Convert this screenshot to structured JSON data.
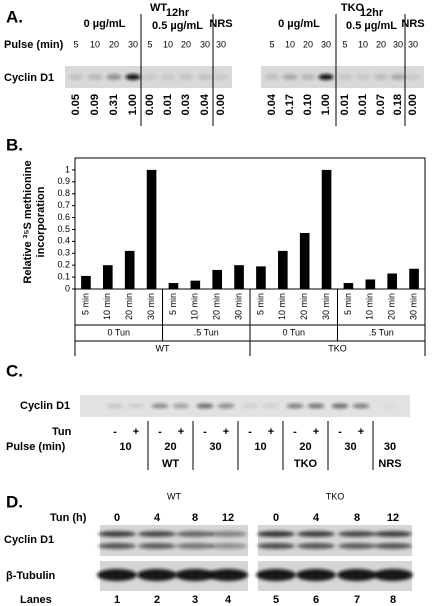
{
  "panel_a": {
    "label": "A.",
    "pulse_label": "Pulse (min)",
    "row_label": "Cyclin D1",
    "samples": [
      {
        "name": "WT",
        "dose_0": "0 µg/mL",
        "time": "12hr",
        "dose_1": "0.5 µg/mL",
        "control": "NRS",
        "pulses": [
          "5",
          "10",
          "20",
          "30",
          "5",
          "10",
          "20",
          "30",
          "30"
        ],
        "values": [
          "0.05",
          "0.09",
          "0.31",
          "1.00",
          "0.00",
          "0.01",
          "0.03",
          "0.04",
          "0.00"
        ]
      },
      {
        "name": "TKO",
        "dose_0": "0 µg/mL",
        "time": "12hr",
        "dose_1": "0.5 µg/mL",
        "control": "NRS",
        "pulses": [
          "5",
          "10",
          "20",
          "30",
          "5",
          "10",
          "20",
          "30",
          "30"
        ],
        "values": [
          "0.04",
          "0.17",
          "0.10",
          "1.00",
          "0.01",
          "0.01",
          "0.07",
          "0.18",
          "0.00"
        ]
      }
    ]
  },
  "panel_b": {
    "label": "B."
  },
  "chart_data": {
    "type": "bar",
    "ylabel": [
      "Relative ³⁵S methionine",
      "incorporation"
    ],
    "categories": [
      "5 min",
      "10 min",
      "20 min",
      "30 min",
      "5 min",
      "10 min",
      "20 min",
      "30 min",
      "5 min",
      "10 min",
      "20 min",
      "30 min",
      "5 min",
      "10 min",
      "20 min",
      "30 min"
    ],
    "values": [
      0.11,
      0.2,
      0.32,
      1.0,
      0.05,
      0.07,
      0.16,
      0.2,
      0.19,
      0.32,
      0.47,
      1.0,
      0.05,
      0.08,
      0.13,
      0.17
    ],
    "color": "#000000",
    "ylim": [
      0,
      1.1
    ],
    "yticks": [
      0,
      0.1,
      0.2,
      0.3,
      0.4,
      0.5,
      0.6,
      0.7,
      0.8,
      0.9,
      1
    ],
    "group_labels": [
      "0 Tun",
      ".5 Tun",
      "0 Tun",
      ".5 Tun"
    ],
    "super_groups": [
      "WT",
      "TKO"
    ],
    "grid": false
  },
  "panel_c": {
    "label": "C.",
    "row_label": "Cyclin D1",
    "tun_label": "Tun",
    "tun": [
      "-",
      "+",
      "-",
      "+",
      "-",
      "+",
      "-",
      "+",
      "-",
      "+",
      "-",
      "+"
    ],
    "pulse_label": "Pulse (min)",
    "pulses": [
      "10",
      "20",
      "30",
      "10",
      "20",
      "30",
      "30"
    ],
    "groups": [
      "WT",
      "TKO",
      "NRS"
    ]
  },
  "panel_d": {
    "label": "D.",
    "groups": [
      "WT",
      "TKO"
    ],
    "tun_label": "Tun (h)",
    "tun": [
      "0",
      "4",
      "8",
      "12",
      "0",
      "4",
      "8",
      "12"
    ],
    "rows": [
      "Cyclin D1",
      "β-Tubulin"
    ],
    "lanes_label": "Lanes",
    "lanes": [
      "1",
      "2",
      "3",
      "4",
      "5",
      "6",
      "7",
      "8"
    ]
  }
}
